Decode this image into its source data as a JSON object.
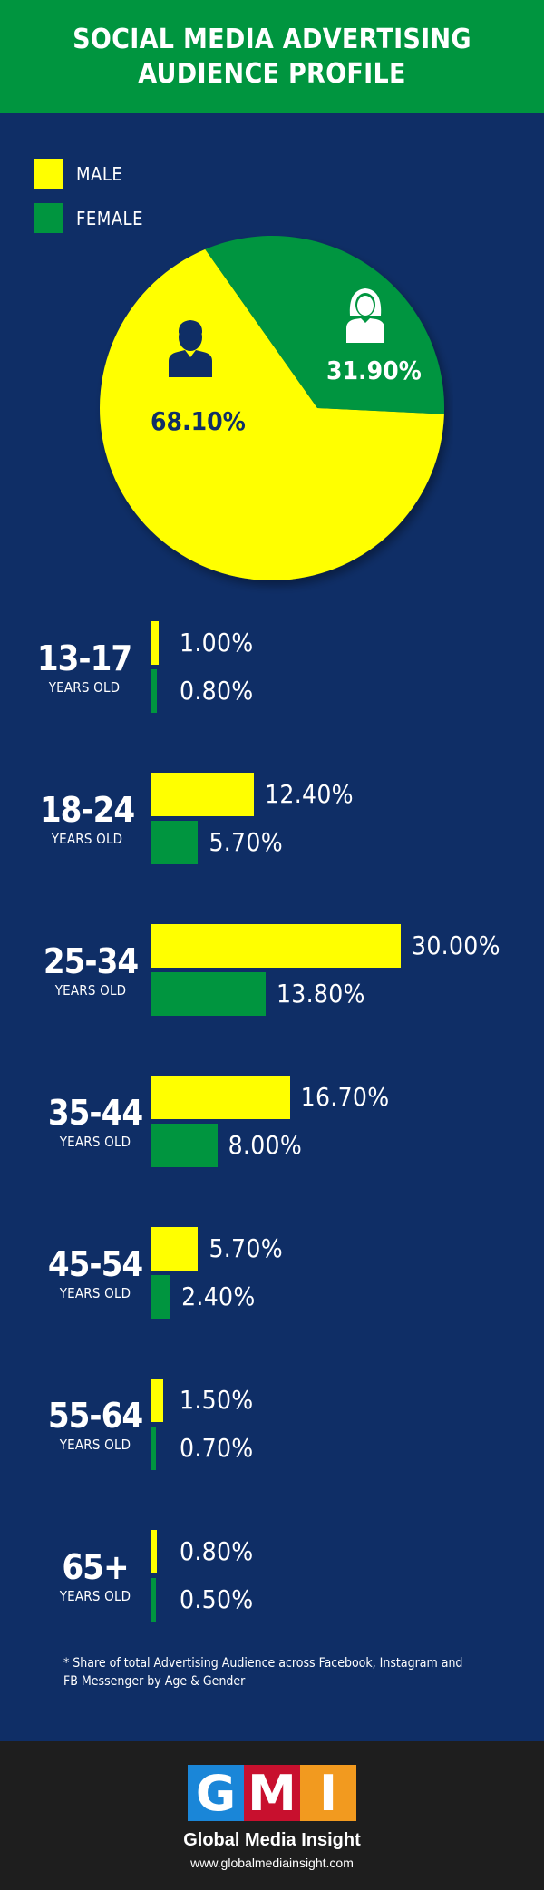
{
  "header": {
    "title_line1": "SOCIAL MEDIA ADVERTISING",
    "title_line2": "AUDIENCE PROFILE"
  },
  "colors": {
    "male": "#ffff00",
    "female": "#00953f",
    "background": "#0f2e66",
    "header": "#00953f"
  },
  "legend": [
    {
      "label": "MALE",
      "color": "#ffff00"
    },
    {
      "label": "FEMALE",
      "color": "#00953f"
    }
  ],
  "chart_data": [
    {
      "type": "pie",
      "slices": [
        {
          "name": "MALE",
          "value": 68.1,
          "label": "68.10%",
          "icon": "male-person-icon"
        },
        {
          "name": "FEMALE",
          "value": 31.9,
          "label": "31.90%",
          "icon": "female-person-icon"
        }
      ]
    },
    {
      "type": "bar",
      "orientation": "horizontal",
      "categories": [
        "13-17",
        "18-24",
        "25-34",
        "35-44",
        "45-54",
        "55-64",
        "65+"
      ],
      "category_sublabel": "YEARS OLD",
      "series": [
        {
          "name": "MALE",
          "values": [
            1.0,
            12.4,
            30.0,
            16.7,
            5.7,
            1.5,
            0.8
          ],
          "labels": [
            "1.00%",
            "12.40%",
            "30.00%",
            "16.70%",
            "5.70%",
            "1.50%",
            "0.80%"
          ]
        },
        {
          "name": "FEMALE",
          "values": [
            0.8,
            5.7,
            13.8,
            8.0,
            2.4,
            0.7,
            0.5
          ],
          "labels": [
            "0.80%",
            "5.70%",
            "13.80%",
            "8.00%",
            "2.40%",
            "0.70%",
            "0.50%"
          ]
        }
      ]
    }
  ],
  "footnote": "* Share of total Advertising Audience across Facebook, Instagram and FB Messenger by Age & Gender",
  "footer": {
    "logo_letters": [
      "G",
      "M",
      "I"
    ],
    "brand": "Global Media Insight",
    "website": "www.globalmediainsight.com"
  }
}
